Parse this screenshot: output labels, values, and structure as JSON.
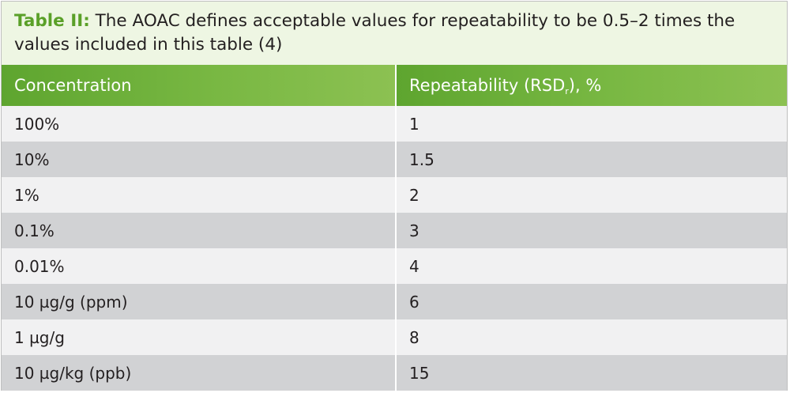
{
  "caption": {
    "label": "Table II:",
    "text": " The AOAC defines acceptable values for repeatability to be 0.5–2 times the values included in this table (4)"
  },
  "table": {
    "headers": {
      "concentration": "Concentration",
      "repeatability_prefix": "Repeatability (RSD",
      "repeatability_subscript": "r",
      "repeatability_suffix": "), %"
    },
    "rows": [
      {
        "concentration": "100%",
        "repeatability": "1"
      },
      {
        "concentration": "10%",
        "repeatability": "1.5"
      },
      {
        "concentration": "1%",
        "repeatability": "2"
      },
      {
        "concentration": "0.1%",
        "repeatability": "3"
      },
      {
        "concentration": "0.01%",
        "repeatability": "4"
      },
      {
        "concentration": "10 µg/g (ppm)",
        "repeatability": "6"
      },
      {
        "concentration": "1 µg/g",
        "repeatability": "8"
      },
      {
        "concentration": "10 µg/kg (ppb)",
        "repeatability": "15"
      }
    ]
  },
  "colors": {
    "header_green": "#79b843",
    "caption_label_green": "#5aa028",
    "caption_background": "#eef6e3",
    "row_light": "#f1f1f2",
    "row_dark": "#d1d2d4"
  }
}
